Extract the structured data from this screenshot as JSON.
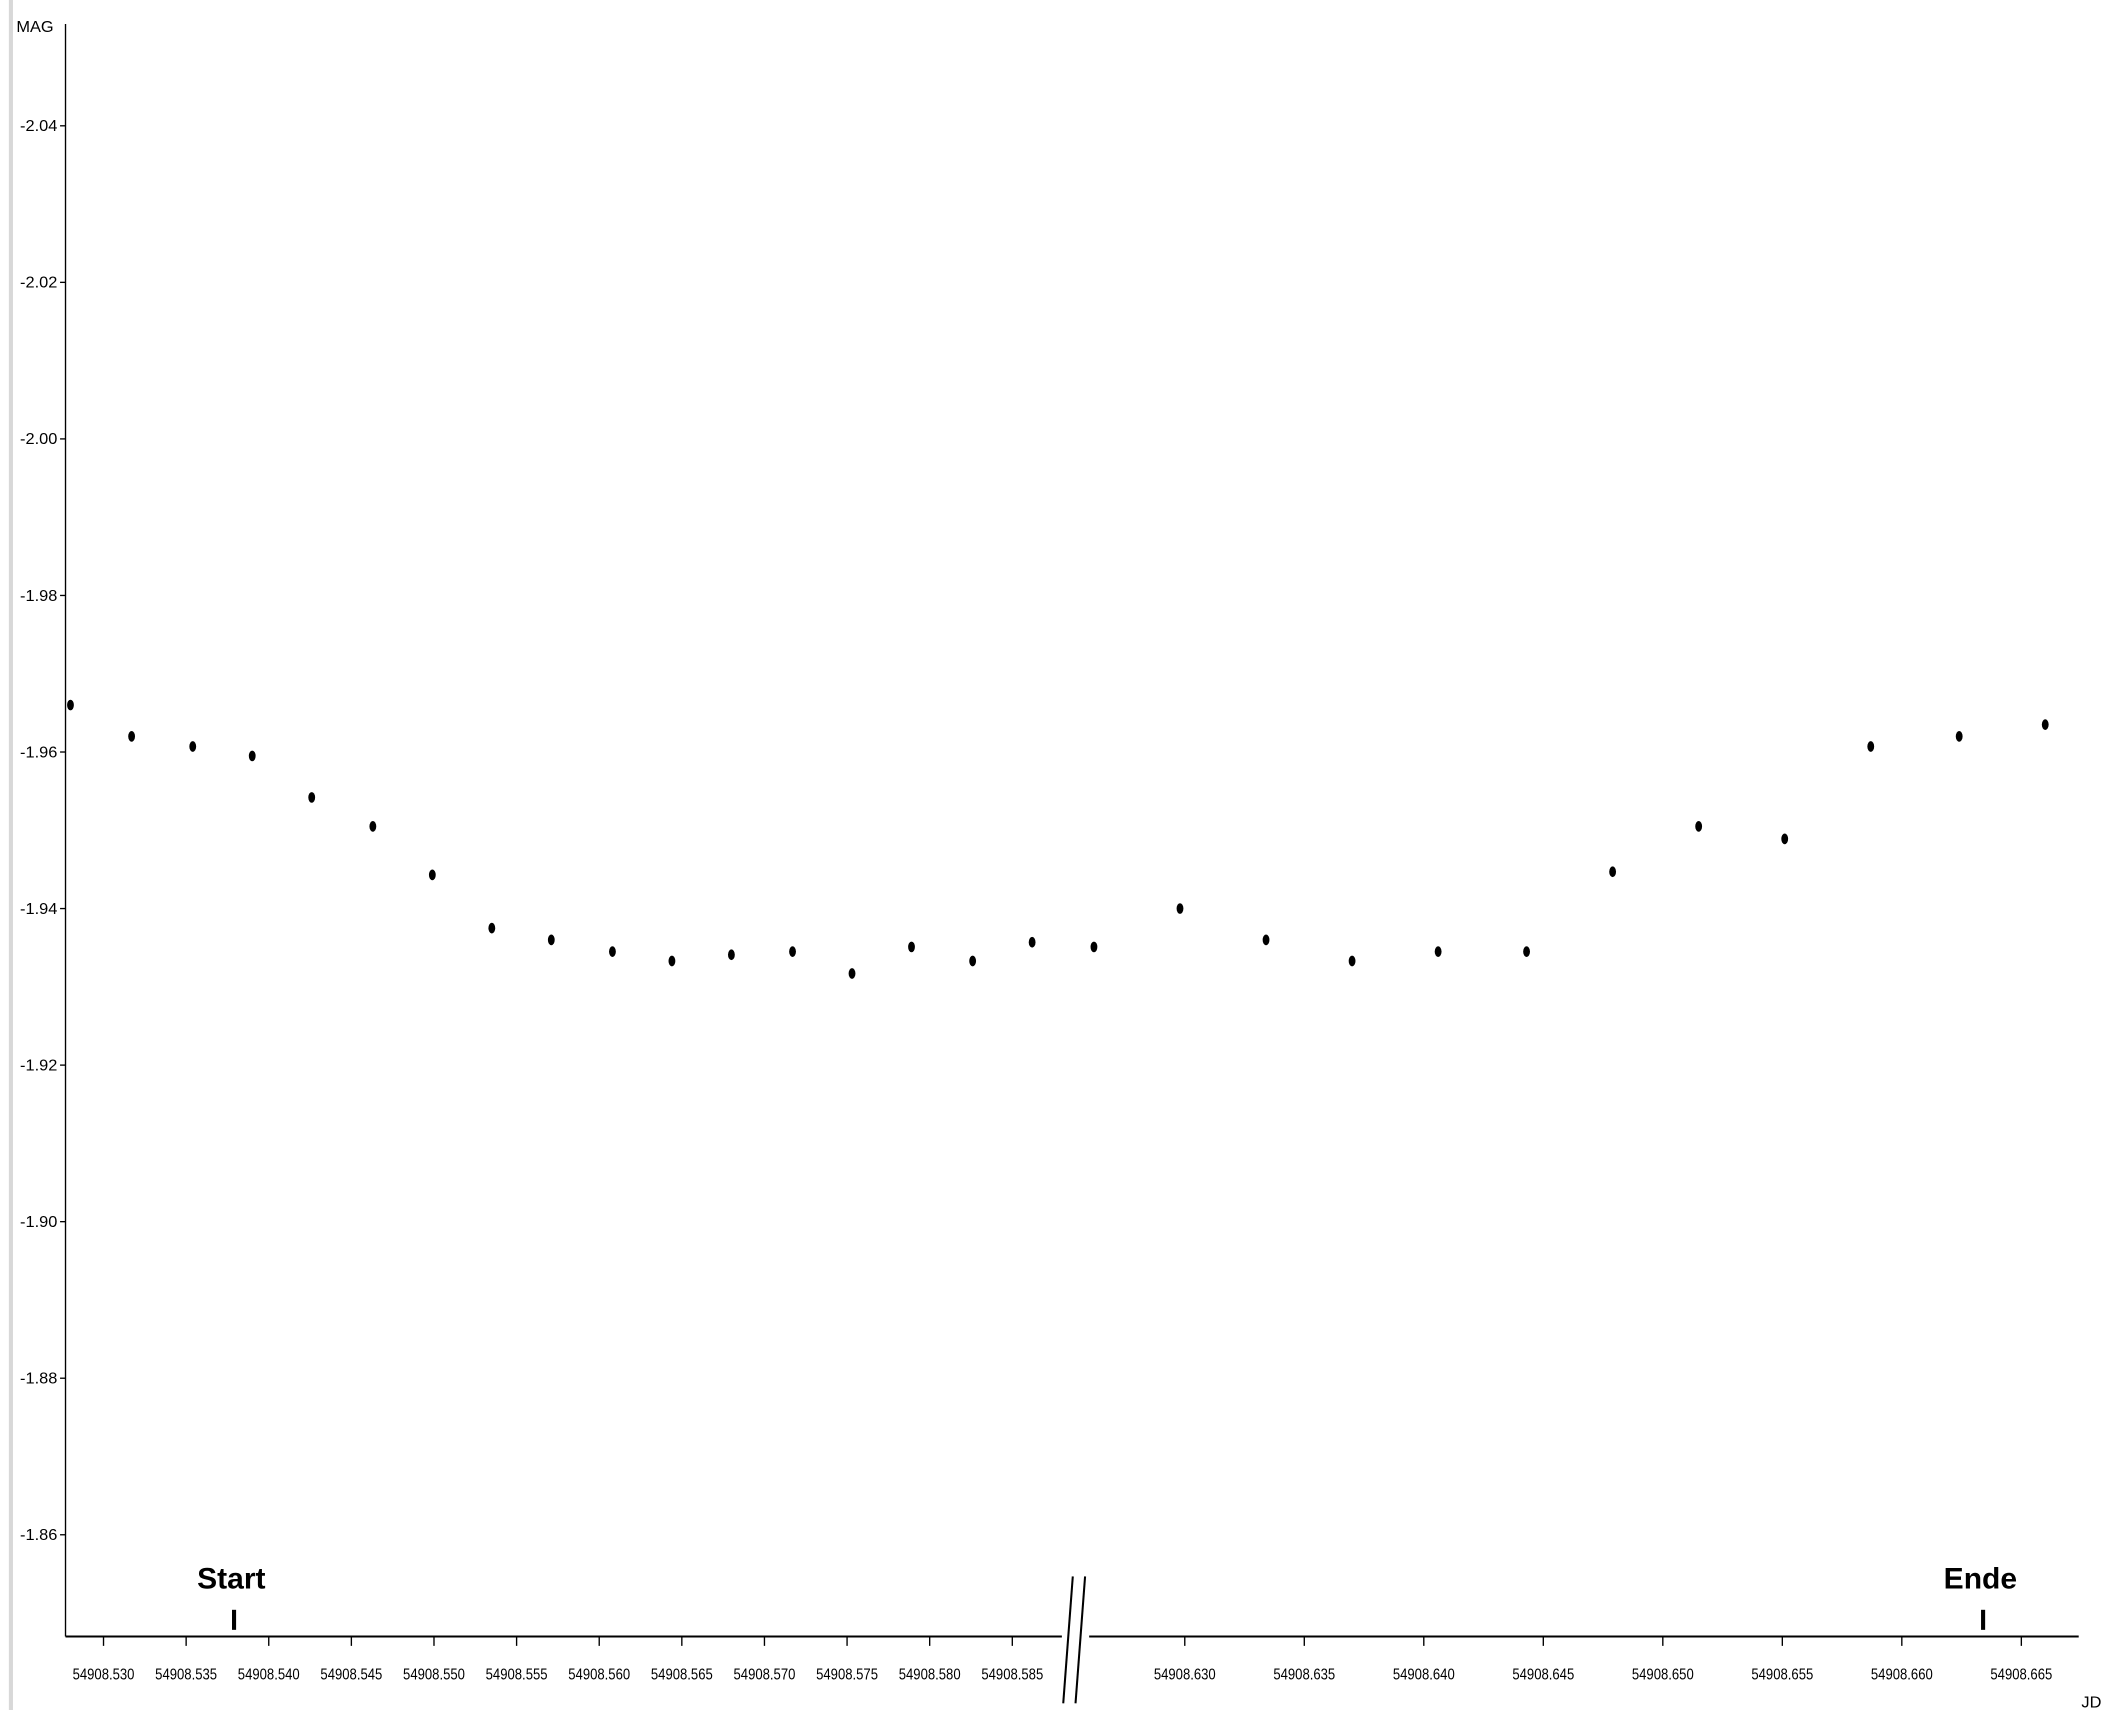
{
  "chart_data": [
    {
      "type": "scatter",
      "ylabel": "MAG",
      "color": "#000000",
      "ylim": [
        -2.053,
        -1.847
      ],
      "inverted": true,
      "yticks": [
        -2.04,
        -2.02,
        {
          "value": -2,
          "label": "-2.00"
        },
        -1.98,
        -1.96,
        -1.94,
        -1.92,
        {
          "value": -1.9,
          "label": "-1.90"
        },
        -1.88,
        -1.86
      ],
      "xlim": [
        54908.5277,
        54908.588
      ],
      "xticks": [
        {
          "value": 54908.53,
          "label": "54908.530"
        },
        {
          "value": 54908.535,
          "label": "54908.535"
        },
        {
          "value": 54908.54,
          "label": "54908.540"
        },
        {
          "value": 54908.545,
          "label": "54908.545"
        },
        {
          "value": 54908.55,
          "label": "54908.550"
        },
        {
          "value": 54908.555,
          "label": "54908.555"
        },
        {
          "value": 54908.56,
          "label": "54908.560"
        },
        {
          "value": 54908.565,
          "label": "54908.565"
        },
        {
          "value": 54908.57,
          "label": "54908.570"
        },
        {
          "value": 54908.575,
          "label": "54908.575"
        },
        {
          "value": 54908.58,
          "label": "54908.580"
        },
        {
          "value": 54908.585,
          "label": "54908.585"
        }
      ],
      "x": [
        54908.528,
        54908.5317,
        54908.5354,
        54908.539,
        54908.5426,
        54908.5463,
        54908.5499,
        54908.5535,
        54908.5571,
        54908.5608,
        54908.5644,
        54908.568,
        54908.5717,
        54908.5753,
        54908.5789,
        54908.5826,
        54908.5862
      ],
      "values": [
        -1.966,
        -1.962,
        -1.9607,
        -1.9595,
        -1.9542,
        -1.9505,
        -1.9443,
        -1.9375,
        -1.936,
        -1.9345,
        -1.9333,
        -1.9341,
        -1.9345,
        -1.9317,
        -1.9351,
        -1.9333,
        -1.9357
      ],
      "annotations": [
        {
          "text": "Start",
          "x": 54908.5379
        }
      ]
    },
    {
      "type": "scatter",
      "xlabel": "JD",
      "color": "#000000",
      "ylim": [
        -2.053,
        -1.847
      ],
      "inverted": true,
      "xlim": [
        54908.626,
        54908.6674
      ],
      "xticks": [
        {
          "value": 54908.63,
          "label": "54908.630"
        },
        {
          "value": 54908.635,
          "label": "54908.635"
        },
        {
          "value": 54908.64,
          "label": "54908.640"
        },
        {
          "value": 54908.645,
          "label": "54908.645"
        },
        {
          "value": 54908.65,
          "label": "54908.650"
        },
        {
          "value": 54908.655,
          "label": "54908.655"
        },
        {
          "value": 54908.66,
          "label": "54908.660"
        },
        {
          "value": 54908.665,
          "label": "54908.665"
        }
      ],
      "x": [
        54908.6262,
        54908.6298,
        54908.6334,
        54908.637,
        54908.6406,
        54908.6443,
        54908.6479,
        54908.6515,
        54908.6551,
        54908.6587,
        54908.6624,
        54908.666
      ],
      "values": [
        -1.9351,
        -1.94,
        -1.936,
        -1.9333,
        -1.9345,
        -1.9345,
        -1.9447,
        -1.9505,
        -1.9489,
        -1.9607,
        -1.962,
        -1.9635
      ],
      "annotations": [
        {
          "text": "Ende",
          "x": 54908.6634
        }
      ]
    }
  ]
}
